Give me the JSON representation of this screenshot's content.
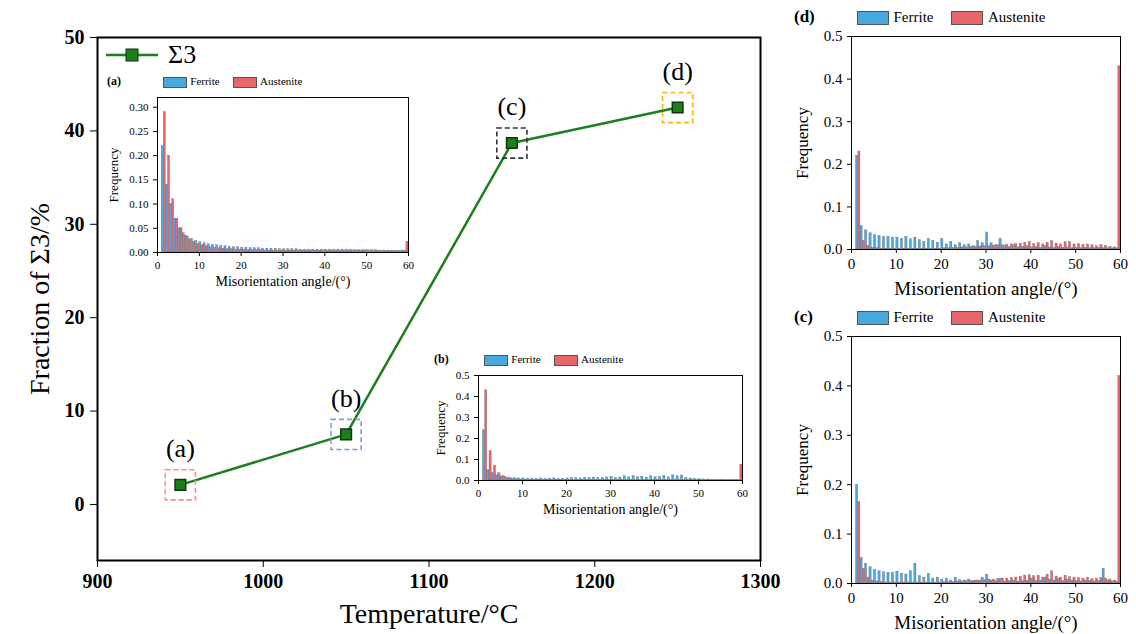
{
  "chart_data": [
    {
      "type": "line",
      "x_label": "Temperature/°C",
      "y_label": "Fraction of Σ3/%",
      "x": [
        950,
        1050,
        1150,
        1250
      ],
      "series": [
        {
          "name": "Σ3",
          "color": "#1b7f1b",
          "marker": "square",
          "values": [
            2.1,
            7.5,
            38.7,
            42.5
          ]
        }
      ],
      "xlim": [
        900,
        1300
      ],
      "xticks": [
        900,
        1000,
        1100,
        1200,
        1300
      ],
      "ylim": [
        -6,
        50
      ],
      "yticks": [
        0,
        10,
        20,
        30,
        40,
        50
      ],
      "legend": "top-left",
      "annotations": [
        {
          "text": "(a)",
          "color": "#f4907f"
        },
        {
          "text": "(b)",
          "color": "#7b9fd8"
        },
        {
          "text": "(c)",
          "color": "#333333"
        },
        {
          "text": "(d)",
          "color": "#f2b51e"
        }
      ]
    },
    {
      "type": "bar",
      "title": "(a)",
      "x_label": "Misorientation angle/(°)",
      "y_label": "Frequency",
      "bins": [
        0,
        1,
        2,
        3,
        4,
        5,
        6,
        7,
        8,
        9,
        10,
        11,
        12,
        13,
        14,
        15,
        16,
        17,
        18,
        19,
        20,
        21,
        22,
        23,
        24,
        25,
        26,
        27,
        28,
        29,
        30,
        31,
        32,
        33,
        34,
        35,
        36,
        37,
        38,
        39,
        40,
        41,
        42,
        43,
        44,
        45,
        46,
        47,
        48,
        49,
        50,
        51,
        52,
        53,
        54,
        55,
        56,
        57,
        58,
        59,
        60
      ],
      "series": [
        {
          "name": "Ferrite",
          "color": "#4aa8e0",
          "values": [
            0,
            0.22,
            0.14,
            0.1,
            0.07,
            0.05,
            0.04,
            0.033,
            0.028,
            0.024,
            0.021,
            0.019,
            0.017,
            0.016,
            0.015,
            0.014,
            0.013,
            0.012,
            0.011,
            0.011,
            0.01,
            0.01,
            0.009,
            0.009,
            0.009,
            0.008,
            0.008,
            0.008,
            0.008,
            0.007,
            0.007,
            0.007,
            0.007,
            0.007,
            0.006,
            0.006,
            0.006,
            0.006,
            0.006,
            0.006,
            0.006,
            0.006,
            0.006,
            0.006,
            0.006,
            0.006,
            0.006,
            0.005,
            0.005,
            0.005,
            0.005,
            0.005,
            0.005,
            0.004,
            0.004,
            0.004,
            0.004,
            0.004,
            0.004,
            0.004
          ]
        },
        {
          "name": "Austenite",
          "color": "#e8666a",
          "values": [
            0,
            0.29,
            0.2,
            0.11,
            0.07,
            0.05,
            0.035,
            0.027,
            0.022,
            0.018,
            0.015,
            0.013,
            0.011,
            0.01,
            0.009,
            0.008,
            0.007,
            0.007,
            0.006,
            0.006,
            0.006,
            0.005,
            0.005,
            0.005,
            0.005,
            0.004,
            0.004,
            0.004,
            0.004,
            0.004,
            0.004,
            0.004,
            0.004,
            0.004,
            0.004,
            0.004,
            0.004,
            0.004,
            0.004,
            0.004,
            0.004,
            0.004,
            0.004,
            0.004,
            0.004,
            0.004,
            0.004,
            0.004,
            0.004,
            0.004,
            0.003,
            0.003,
            0.003,
            0.003,
            0.003,
            0.003,
            0.003,
            0.003,
            0.004,
            0.022
          ]
        }
      ],
      "xlim": [
        0,
        60
      ],
      "xticks": [
        0,
        10,
        20,
        30,
        40,
        50,
        60
      ],
      "ylim": [
        0,
        0.32
      ],
      "yticks": [
        {
          "value": 0,
          "label": "0.00"
        },
        0.05,
        {
          "value": 0.1,
          "label": "0.10"
        },
        0.15,
        {
          "value": 0.2,
          "label": "0.20"
        },
        0.25,
        {
          "value": 0.3,
          "label": "0.30"
        }
      ],
      "legend": "top-left"
    },
    {
      "type": "bar",
      "title": "(b)",
      "x_label": "Misorientation angle/(°)",
      "y_label": "Frequency",
      "bins": [
        0,
        1,
        2,
        3,
        4,
        5,
        6,
        7,
        8,
        9,
        10,
        11,
        12,
        13,
        14,
        15,
        16,
        17,
        18,
        19,
        20,
        21,
        22,
        23,
        24,
        25,
        26,
        27,
        28,
        29,
        30,
        31,
        32,
        33,
        34,
        35,
        36,
        37,
        38,
        39,
        40,
        41,
        42,
        43,
        44,
        45,
        46,
        47,
        48,
        49,
        50,
        51,
        52,
        53,
        54,
        55,
        56,
        57,
        58,
        59,
        60
      ],
      "series": [
        {
          "name": "Ferrite",
          "color": "#4aa8e0",
          "values": [
            0,
            0.24,
            0.05,
            0.035,
            0.025,
            0.02,
            0.016,
            0.013,
            0.011,
            0.01,
            0.01,
            0.009,
            0.009,
            0.008,
            0.01,
            0.008,
            0.009,
            0.01,
            0.008,
            0.009,
            0.01,
            0.012,
            0.011,
            0.01,
            0.013,
            0.012,
            0.014,
            0.011,
            0.013,
            0.015,
            0.018,
            0.012,
            0.014,
            0.02,
            0.015,
            0.022,
            0.016,
            0.018,
            0.014,
            0.02,
            0.016,
            0.018,
            0.022,
            0.015,
            0.025,
            0.02,
            0.024,
            0.012,
            0.01,
            0.008,
            0.006,
            0.005,
            0.005,
            0.004,
            0.004,
            0.004,
            0.003,
            0.003,
            0.003,
            0.003
          ]
        },
        {
          "name": "Austenite",
          "color": "#e8666a",
          "values": [
            0,
            0.43,
            0.14,
            0.07,
            0.035,
            0.02,
            0.012,
            0.008,
            0.006,
            0.005,
            0.004,
            0.004,
            0.004,
            0.004,
            0.004,
            0.004,
            0.004,
            0.004,
            0.004,
            0.004,
            0.003,
            0.003,
            0.003,
            0.003,
            0.003,
            0.003,
            0.003,
            0.003,
            0.003,
            0.003,
            0.003,
            0.003,
            0.003,
            0.003,
            0.003,
            0.003,
            0.003,
            0.003,
            0.003,
            0.003,
            0.003,
            0.003,
            0.003,
            0.003,
            0.003,
            0.003,
            0.003,
            0.003,
            0.003,
            0.003,
            0.002,
            0.002,
            0.002,
            0.002,
            0.002,
            0.002,
            0.002,
            0.002,
            0.003,
            0.075
          ]
        }
      ],
      "xlim": [
        0,
        60
      ],
      "xticks": [
        0,
        10,
        20,
        30,
        40,
        50,
        60
      ],
      "ylim": [
        0,
        0.5
      ],
      "yticks": [
        {
          "value": 0,
          "label": "0.0"
        },
        0.1,
        0.2,
        0.3,
        0.4,
        0.5
      ],
      "legend": "top-left"
    },
    {
      "type": "bar",
      "title": "(c)",
      "x_label": "Misorientation angle/(°)",
      "y_label": "Frequency",
      "bins": [
        0,
        1,
        2,
        3,
        4,
        5,
        6,
        7,
        8,
        9,
        10,
        11,
        12,
        13,
        14,
        15,
        16,
        17,
        18,
        19,
        20,
        21,
        22,
        23,
        24,
        25,
        26,
        27,
        28,
        29,
        30,
        31,
        32,
        33,
        34,
        35,
        36,
        37,
        38,
        39,
        40,
        41,
        42,
        43,
        44,
        45,
        46,
        47,
        48,
        49,
        50,
        51,
        52,
        53,
        54,
        55,
        56,
        57,
        58,
        59,
        60
      ],
      "series": [
        {
          "name": "Ferrite",
          "color": "#4aa8e0",
          "values": [
            0,
            0.2,
            0.052,
            0.04,
            0.033,
            0.028,
            0.025,
            0.023,
            0.022,
            0.022,
            0.024,
            0.02,
            0.018,
            0.025,
            0.04,
            0.015,
            0.012,
            0.02,
            0.01,
            0.012,
            0.008,
            0.01,
            0.006,
            0.012,
            0.007,
            0.006,
            0.008,
            0.005,
            0.006,
            0.012,
            0.018,
            0.006,
            0.005,
            0.01,
            0.004,
            0.005,
            0.006,
            0.004,
            0.005,
            0.006,
            0.01,
            0.005,
            0.006,
            0.012,
            0.008,
            0.006,
            0.01,
            0.005,
            0.008,
            0.006,
            0.005,
            0.004,
            0.006,
            0.005,
            0.004,
            0.005,
            0.03,
            0.006,
            0.004,
            0.004
          ]
        },
        {
          "name": "Austenite",
          "color": "#e8666a",
          "values": [
            0,
            0.165,
            0.03,
            0.012,
            0.006,
            0.004,
            0.003,
            0.002,
            0.002,
            0.002,
            0.002,
            0.002,
            0.002,
            0.002,
            0.002,
            0.002,
            0.002,
            0.002,
            0.002,
            0.002,
            0.003,
            0.003,
            0.003,
            0.004,
            0.004,
            0.005,
            0.005,
            0.006,
            0.006,
            0.007,
            0.008,
            0.008,
            0.009,
            0.01,
            0.01,
            0.011,
            0.012,
            0.014,
            0.016,
            0.017,
            0.015,
            0.016,
            0.012,
            0.018,
            0.025,
            0.014,
            0.012,
            0.016,
            0.013,
            0.012,
            0.011,
            0.01,
            0.012,
            0.009,
            0.01,
            0.011,
            0.01,
            0.008,
            0.006,
            0.42
          ]
        }
      ],
      "xlim": [
        0,
        60
      ],
      "xticks": [
        0,
        10,
        20,
        30,
        40,
        50,
        60
      ],
      "ylim": [
        0,
        0.5
      ],
      "yticks": [
        {
          "value": 0,
          "label": "0.0"
        },
        0.1,
        0.2,
        0.3,
        0.4,
        0.5
      ],
      "legend": "top-left"
    },
    {
      "type": "bar",
      "title": "(d)",
      "x_label": "Misorientation angle/(°)",
      "y_label": "Frequency",
      "bins": [
        0,
        1,
        2,
        3,
        4,
        5,
        6,
        7,
        8,
        9,
        10,
        11,
        12,
        13,
        14,
        15,
        16,
        17,
        18,
        19,
        20,
        21,
        22,
        23,
        24,
        25,
        26,
        27,
        28,
        29,
        30,
        31,
        32,
        33,
        34,
        35,
        36,
        37,
        38,
        39,
        40,
        41,
        42,
        43,
        44,
        45,
        46,
        47,
        48,
        49,
        50,
        51,
        52,
        53,
        54,
        55,
        56,
        57,
        58,
        59,
        60
      ],
      "series": [
        {
          "name": "Ferrite",
          "color": "#4aa8e0",
          "values": [
            0,
            0.22,
            0.055,
            0.045,
            0.038,
            0.034,
            0.032,
            0.03,
            0.03,
            0.028,
            0.028,
            0.025,
            0.03,
            0.024,
            0.028,
            0.022,
            0.018,
            0.025,
            0.02,
            0.016,
            0.025,
            0.012,
            0.018,
            0.01,
            0.015,
            0.01,
            0.012,
            0.008,
            0.02,
            0.015,
            0.04,
            0.015,
            0.01,
            0.025,
            0.008,
            0.006,
            0.01,
            0.005,
            0.006,
            0.008,
            0.005,
            0.006,
            0.004,
            0.008,
            0.005,
            0.004,
            0.006,
            0.004,
            0.005,
            0.003,
            0.004,
            0.003,
            0.004,
            0.003,
            0.003,
            0.004,
            0.003,
            0.003,
            0.003,
            0.003
          ]
        },
        {
          "name": "Austenite",
          "color": "#e8666a",
          "values": [
            0,
            0.23,
            0.02,
            0.008,
            0.004,
            0.003,
            0.002,
            0.002,
            0.002,
            0.002,
            0.002,
            0.002,
            0.002,
            0.002,
            0.002,
            0.002,
            0.002,
            0.002,
            0.002,
            0.002,
            0.003,
            0.003,
            0.004,
            0.004,
            0.005,
            0.005,
            0.006,
            0.006,
            0.007,
            0.008,
            0.008,
            0.009,
            0.01,
            0.01,
            0.011,
            0.012,
            0.013,
            0.014,
            0.016,
            0.018,
            0.013,
            0.015,
            0.012,
            0.016,
            0.02,
            0.014,
            0.012,
            0.017,
            0.018,
            0.012,
            0.013,
            0.011,
            0.012,
            0.01,
            0.008,
            0.01,
            0.009,
            0.006,
            0.005,
            0.43
          ]
        }
      ],
      "xlim": [
        0,
        60
      ],
      "xticks": [
        0,
        10,
        20,
        30,
        40,
        50,
        60
      ],
      "ylim": [
        0,
        0.5
      ],
      "yticks": [
        {
          "value": 0,
          "label": "0.0"
        },
        0.1,
        0.2,
        0.3,
        0.4,
        0.5
      ],
      "legend": "top-left"
    }
  ]
}
